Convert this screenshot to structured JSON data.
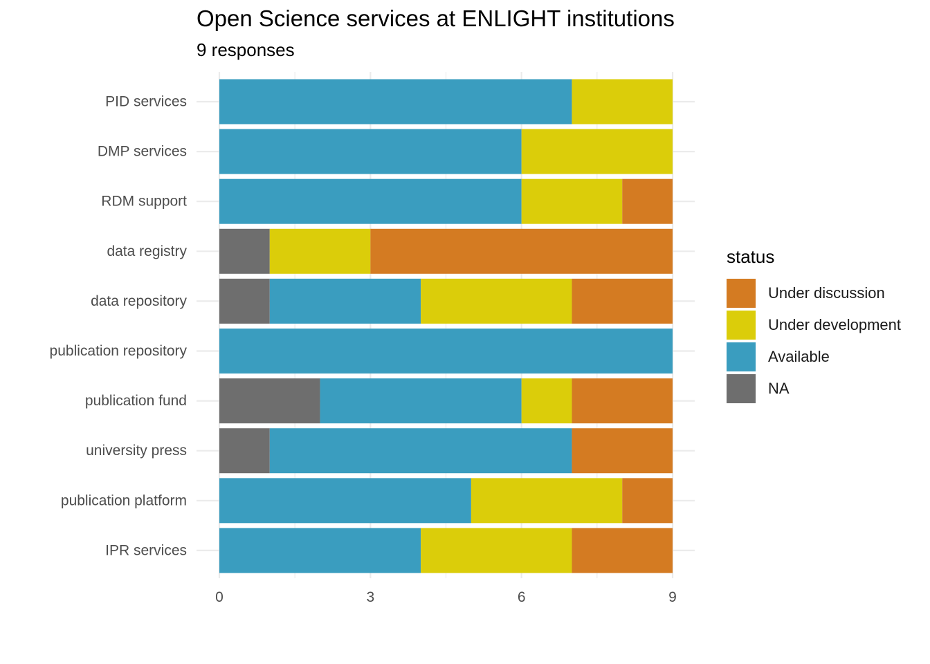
{
  "chart_data": {
    "type": "bar",
    "orientation": "horizontal",
    "stacked": true,
    "title": "Open Science services at ENLIGHT institutions",
    "subtitle": "9 responses",
    "xlabel": "",
    "ylabel": "",
    "xlim": [
      0,
      9
    ],
    "x_ticks": [
      0,
      3,
      6,
      9
    ],
    "grid": true,
    "legend_position": "right",
    "legend_title": "status",
    "categories": [
      "PID services",
      "DMP services",
      "RDM support",
      "data registry",
      "data repository",
      "publication repository",
      "publication fund",
      "university press",
      "publication platform",
      "IPR services"
    ],
    "series": [
      {
        "name": "NA",
        "color": "#6e6e6e",
        "values": [
          0,
          0,
          0,
          1,
          1,
          0,
          2,
          1,
          0,
          0
        ]
      },
      {
        "name": "Available",
        "color": "#3a9dbf",
        "values": [
          7,
          6,
          6,
          0,
          3,
          9,
          4,
          6,
          5,
          4
        ]
      },
      {
        "name": "Under development",
        "color": "#dbcd0a",
        "values": [
          2,
          3,
          2,
          2,
          3,
          0,
          1,
          0,
          3,
          3
        ]
      },
      {
        "name": "Under discussion",
        "color": "#d47b22",
        "values": [
          0,
          0,
          1,
          6,
          2,
          0,
          2,
          2,
          1,
          2
        ]
      }
    ],
    "legend_order": [
      "Under discussion",
      "Under development",
      "Available",
      "NA"
    ]
  }
}
